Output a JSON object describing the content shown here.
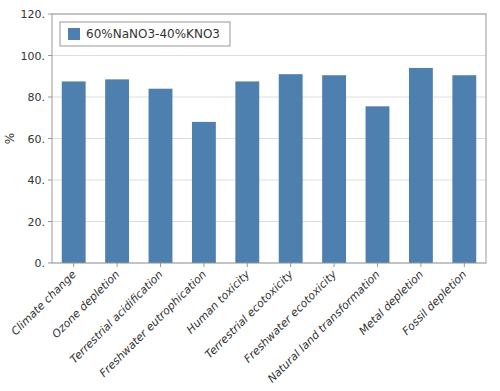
{
  "chart_data": {
    "type": "bar",
    "categories": [
      "Climate change",
      "Ozone depletion",
      "Terrestrial acidification",
      "Freshwater eutrophication",
      "Human toxicity",
      "Terrestrial ecotoxicity",
      "Freshwater ecotoxicity",
      "Natural land transformation",
      "Metal depletion",
      "Fossil depletion"
    ],
    "series": [
      {
        "name": "60%NaNO3-40%KNO3",
        "color": "#4d7faf",
        "values": [
          87.5,
          88.5,
          84.0,
          68.0,
          87.5,
          91.0,
          90.5,
          75.5,
          94.0,
          90.5
        ]
      }
    ],
    "ylabel": "%",
    "ylim": [
      0,
      120
    ],
    "yticks": [
      {
        "value": 0,
        "label": "0."
      },
      {
        "value": 20,
        "label": "20."
      },
      {
        "value": 40,
        "label": "40."
      },
      {
        "value": 60,
        "label": "60."
      },
      {
        "value": 80,
        "label": "80."
      },
      {
        "value": 100,
        "label": "100."
      },
      {
        "value": 120,
        "label": "120."
      }
    ],
    "grid": true,
    "legend": "upper left"
  }
}
